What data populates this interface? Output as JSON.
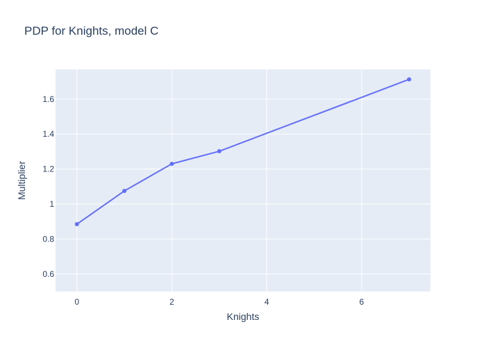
{
  "chart_data": {
    "type": "line",
    "title": "PDP for Knights, model C",
    "xlabel": "Knights",
    "ylabel": "Multiplier",
    "x": [
      0,
      1,
      2,
      3,
      7
    ],
    "series": [
      {
        "values": [
          0.885,
          1.075,
          1.23,
          1.302,
          1.713
        ]
      }
    ],
    "xlim": [
      -0.45,
      7.45
    ],
    "ylim": [
      0.5,
      1.77
    ],
    "xticks": [
      0,
      2,
      4,
      6
    ],
    "xtick_labels": [
      "0",
      "2",
      "4",
      "6"
    ],
    "yticks": [
      0.6,
      0.8,
      1,
      1.2,
      1.4,
      1.6
    ],
    "ytick_labels": [
      "0.6",
      "0.8",
      "1",
      "1.2",
      "1.4",
      "1.6"
    ],
    "grid": true,
    "legend": false,
    "colors": {
      "plot_background": "#e5ecf6",
      "gridline": "#ffffff",
      "line": "#636efa",
      "text": "#2a3f5f"
    }
  }
}
